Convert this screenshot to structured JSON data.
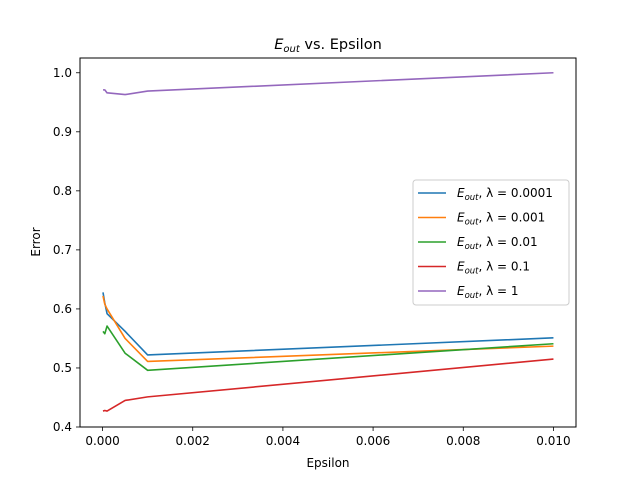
{
  "chart_data": {
    "type": "line",
    "title": {
      "main": "E",
      "sub": "out",
      "rest": " vs. Epsilon"
    },
    "xlabel": "Epsilon",
    "ylabel": "Error",
    "xlim": [
      -0.0005,
      0.0105
    ],
    "ylim": [
      0.4,
      1.025
    ],
    "xticks": [
      0.0,
      0.002,
      0.004,
      0.006,
      0.008,
      0.01
    ],
    "xtick_labels": [
      "0.000",
      "0.002",
      "0.004",
      "0.006",
      "0.008",
      "0.010"
    ],
    "yticks": [
      0.4,
      0.5,
      0.6,
      0.7,
      0.8,
      0.9,
      1.0
    ],
    "ytick_labels": [
      "0.4",
      "0.5",
      "0.6",
      "0.7",
      "0.8",
      "0.9",
      "1.0"
    ],
    "grid": false,
    "legend_position": "center-right",
    "x": [
      1e-05,
      5e-05,
      0.0001,
      0.0005,
      0.001,
      0.01
    ],
    "series": [
      {
        "name": "E",
        "sub": "out",
        "lam": ", λ = 0.0001",
        "color": "#1f77b4",
        "values": [
          0.628,
          0.61,
          0.592,
          0.562,
          0.522,
          0.551
        ]
      },
      {
        "name": "E",
        "sub": "out",
        "lam": ", λ = 0.001",
        "color": "#ff7f0e",
        "values": [
          0.622,
          0.608,
          0.6,
          0.55,
          0.511,
          0.537
        ]
      },
      {
        "name": "E",
        "sub": "out",
        "lam": ", λ = 0.01",
        "color": "#2ca02c",
        "values": [
          0.562,
          0.558,
          0.571,
          0.525,
          0.496,
          0.541
        ]
      },
      {
        "name": "E",
        "sub": "out",
        "lam": ", λ = 0.1",
        "color": "#d62728",
        "values": [
          0.427,
          0.428,
          0.427,
          0.445,
          0.451,
          0.515
        ]
      },
      {
        "name": "E",
        "sub": "out",
        "lam": ", λ = 1",
        "color": "#9467bd",
        "values": [
          0.971,
          0.971,
          0.966,
          0.963,
          0.969,
          1.0
        ]
      }
    ]
  }
}
